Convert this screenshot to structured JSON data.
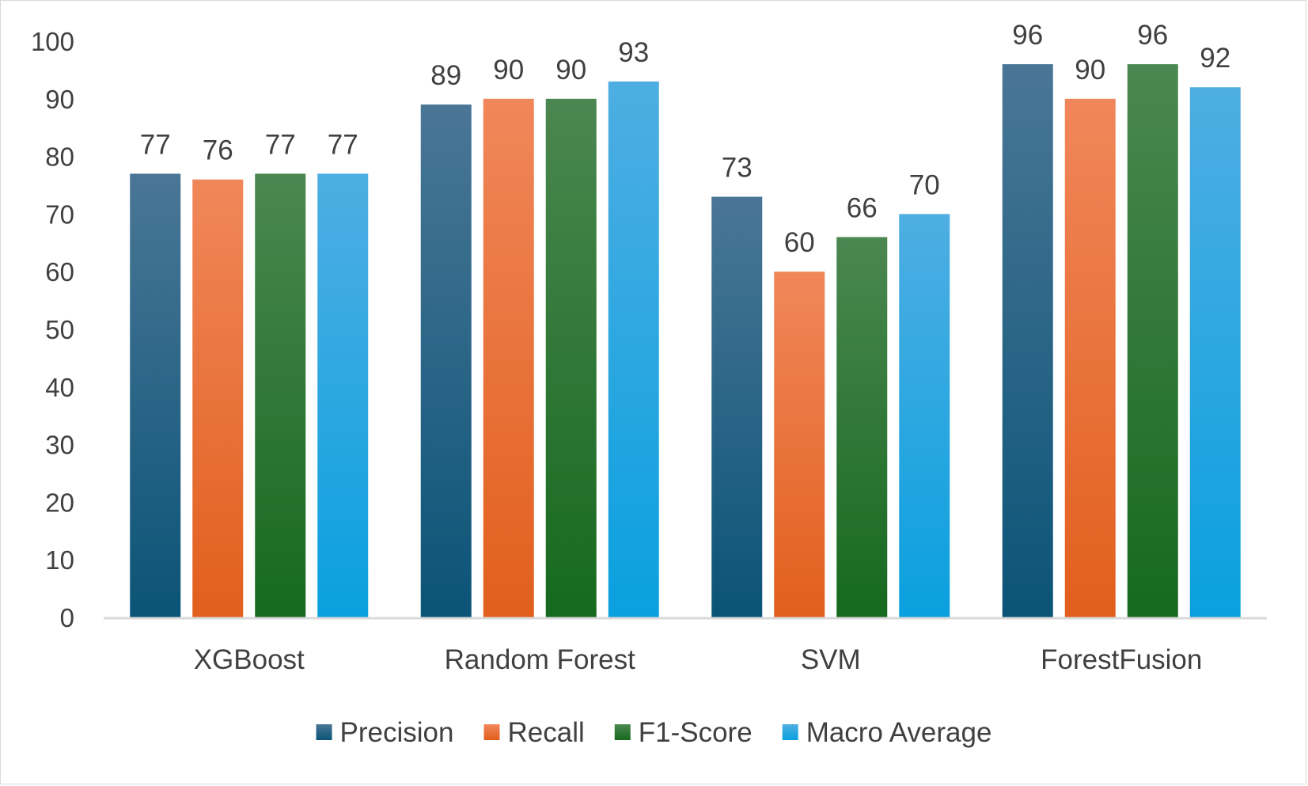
{
  "chart_data": {
    "type": "bar",
    "categories": [
      "XGBoost",
      "Random Forest",
      "SVM",
      "ForestFusion"
    ],
    "series": [
      {
        "name": "Precision",
        "values": [
          77,
          89,
          73,
          96
        ],
        "color_top": "#4a7696",
        "color_bottom": "#0b5477"
      },
      {
        "name": "Recall",
        "values": [
          76,
          90,
          60,
          90
        ],
        "color_top": "#f0875a",
        "color_bottom": "#e25f1d"
      },
      {
        "name": "F1-Score",
        "values": [
          77,
          90,
          66,
          96
        ],
        "color_top": "#4b8750",
        "color_bottom": "#16691f"
      },
      {
        "name": "Macro Average",
        "values": [
          77,
          93,
          70,
          92
        ],
        "color_top": "#4eaee2",
        "color_bottom": "#0aa0df"
      }
    ],
    "title": "",
    "xlabel": "",
    "ylabel": "",
    "ylim": [
      0,
      100
    ],
    "yticks": [
      0,
      10,
      20,
      30,
      40,
      50,
      60,
      70,
      80,
      90,
      100
    ],
    "data_labels": true,
    "grid": false,
    "legend_position": "bottom",
    "colors": {
      "axis_line": "#d9d9d9",
      "text": "#404040",
      "background": "#ffffff"
    }
  }
}
